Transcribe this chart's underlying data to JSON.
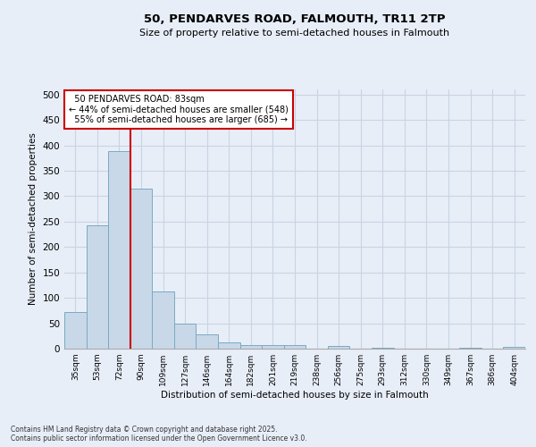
{
  "title1": "50, PENDARVES ROAD, FALMOUTH, TR11 2TP",
  "title2": "Size of property relative to semi-detached houses in Falmouth",
  "xlabel": "Distribution of semi-detached houses by size in Falmouth",
  "ylabel": "Number of semi-detached properties",
  "categories": [
    "35sqm",
    "53sqm",
    "72sqm",
    "90sqm",
    "109sqm",
    "127sqm",
    "146sqm",
    "164sqm",
    "182sqm",
    "201sqm",
    "219sqm",
    "238sqm",
    "256sqm",
    "275sqm",
    "293sqm",
    "312sqm",
    "330sqm",
    "349sqm",
    "367sqm",
    "386sqm",
    "404sqm"
  ],
  "values": [
    72,
    242,
    388,
    315,
    112,
    50,
    29,
    13,
    7,
    7,
    7,
    0,
    5,
    0,
    2,
    0,
    0,
    0,
    1,
    0,
    3
  ],
  "bar_color": "#c8d8e8",
  "bar_edge_color": "#7aaac0",
  "red_line_x": 2.5,
  "annotation_line1": "  50 PENDARVES ROAD: 83sqm",
  "annotation_line2": "← 44% of semi-detached houses are smaller (548)",
  "annotation_line3": "  55% of semi-detached houses are larger (685) →",
  "annotation_box_color": "#ffffff",
  "annotation_box_edge_color": "#cc0000",
  "red_line_color": "#cc0000",
  "grid_color": "#c8d4e4",
  "background_color": "#e8eef8",
  "footer": "Contains HM Land Registry data © Crown copyright and database right 2025.\nContains public sector information licensed under the Open Government Licence v3.0.",
  "ylim": [
    0,
    510
  ],
  "yticks": [
    0,
    50,
    100,
    150,
    200,
    250,
    300,
    350,
    400,
    450,
    500
  ]
}
